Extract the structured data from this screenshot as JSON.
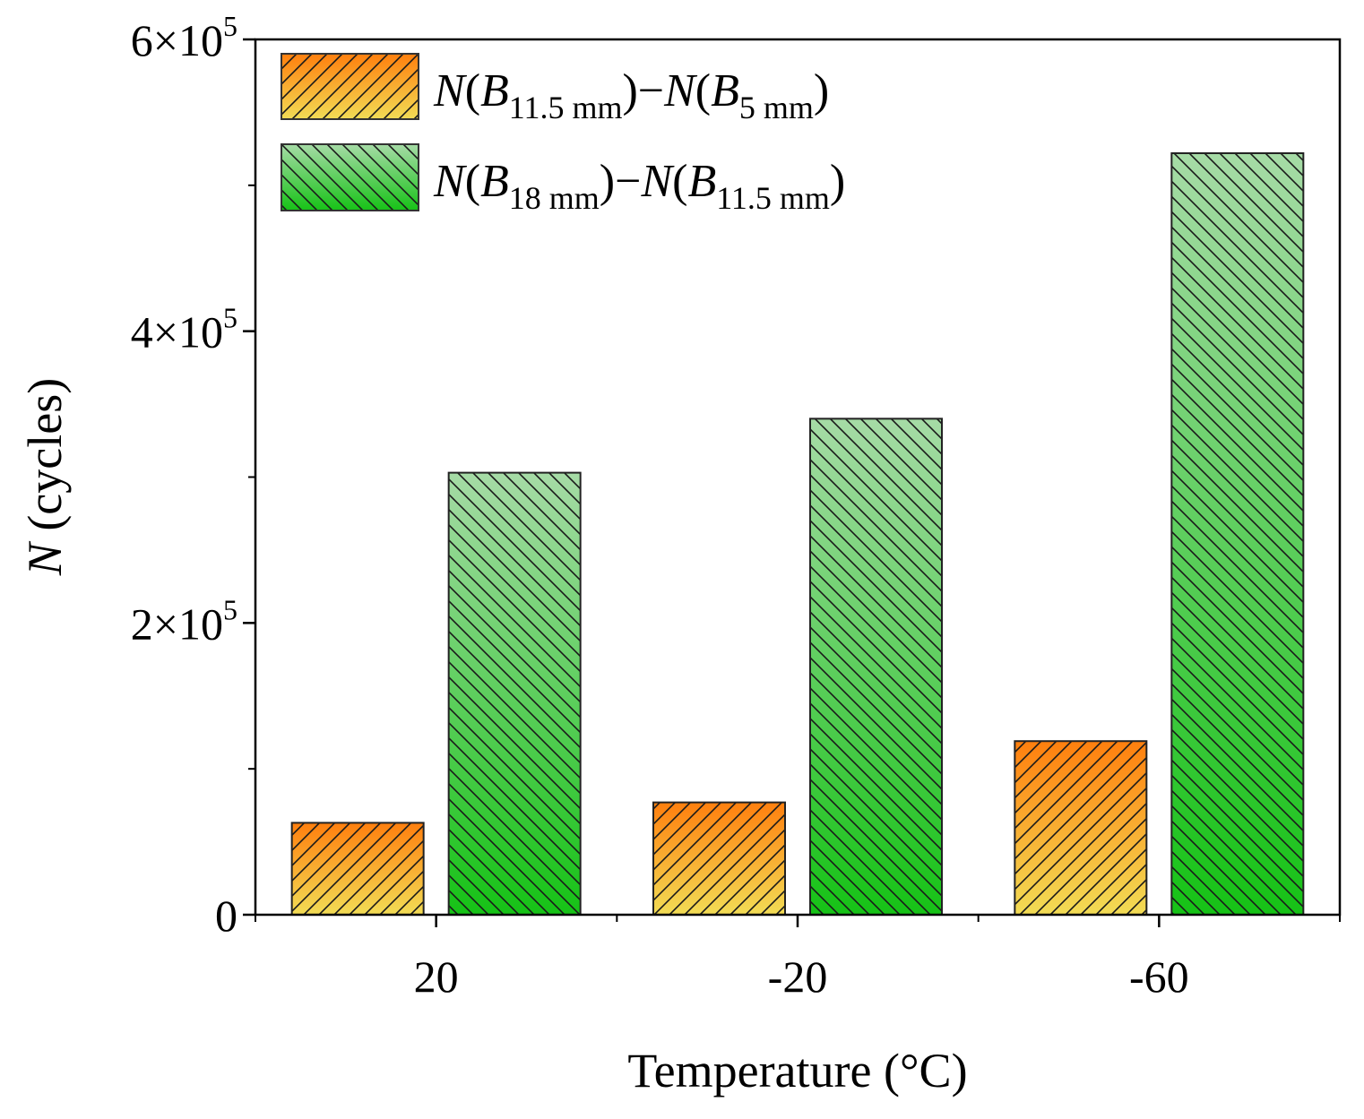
{
  "chart_data": {
    "type": "bar",
    "title": "",
    "xlabel": "Temperature (°C)",
    "ylabel_var": "N",
    "ylabel_unit": " (cycles)",
    "categories": [
      "20",
      "-20",
      "-60"
    ],
    "ylim": [
      0,
      600000
    ],
    "ytick_values": [
      0,
      200000,
      400000,
      600000
    ],
    "minor_ytick_values": [
      100000,
      300000,
      500000
    ],
    "ytick_labels": [
      {
        "base": "0",
        "times": "",
        "ten": "",
        "exp": ""
      },
      {
        "base": "2",
        "times": "×",
        "ten": "10",
        "exp": "5"
      },
      {
        "base": "4",
        "times": "×",
        "ten": "10",
        "exp": "5"
      },
      {
        "base": "6",
        "times": "×",
        "ten": "10",
        "exp": "5"
      }
    ],
    "legend_position": "top-left",
    "grid": false,
    "series": [
      {
        "name": "N(B11.5 mm)−N(B5 mm)",
        "legend": {
          "a_var": "N",
          "a_sym": "B",
          "a_sub": "11.5 mm",
          "minus": "−",
          "b_var": "N",
          "b_sym": "B",
          "b_sub": "5 mm"
        },
        "values": [
          63000,
          77000,
          119000
        ],
        "color_top": "#ff7f0e",
        "color_bottom": "#f2dc55",
        "hatch": "forward"
      },
      {
        "name": "N(B18 mm)−N(B11.5 mm)",
        "legend": {
          "a_var": "N",
          "a_sym": "B",
          "a_sub": "18 mm",
          "minus": "−",
          "b_var": "N",
          "b_sym": "B",
          "b_sub": "11.5 mm"
        },
        "values": [
          303000,
          340000,
          522000
        ],
        "color_top": "#a6dba6",
        "color_bottom": "#16c216",
        "hatch": "backward"
      }
    ]
  }
}
